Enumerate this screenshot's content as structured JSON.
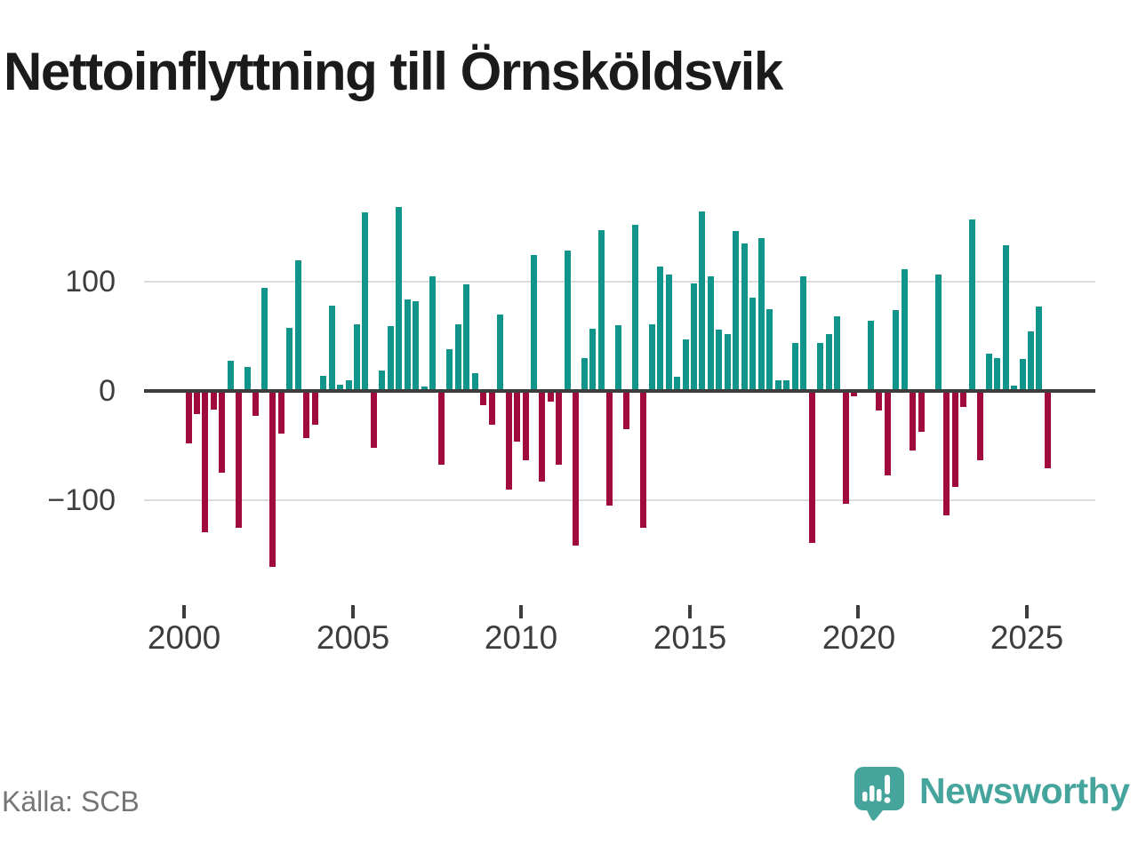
{
  "title": "Nettoinflyttning till Örnsköldsvik",
  "source": "Källa: SCB",
  "logo": {
    "text": "Newsworthy"
  },
  "colors": {
    "positive": "#119489",
    "negative": "#a00a3c",
    "axis": "#3d3d3d",
    "gridline": "#dcdcdc",
    "tick_label": "#3d3d3d",
    "title_text": "#1b1b1b",
    "source_text": "#757575",
    "logo_teal": "#45a59d"
  },
  "y_axis": {
    "labels": [
      "100",
      "0",
      "−100"
    ],
    "values": [
      100,
      0,
      -100
    ]
  },
  "x_axis": {
    "ticks": [
      "2000",
      "2005",
      "2010",
      "2015",
      "2020",
      "2025"
    ]
  },
  "chart_data": {
    "type": "bar",
    "title": "Nettoinflyttning till Örnsköldsvik",
    "xlabel": "",
    "ylabel": "",
    "ylim": [
      -175,
      180
    ],
    "grid": "horizontal",
    "legend": "none",
    "x_tick_labels": [
      "2000",
      "2005",
      "2010",
      "2015",
      "2020",
      "2025"
    ],
    "y_tick_labels": [
      "100",
      "0",
      "−100"
    ],
    "positive_color": "#119489",
    "negative_color": "#a00a3c",
    "source": "Källa: SCB",
    "x": [
      "2000 Q1",
      "2000 Q2",
      "2000 Q3",
      "2000 Q4",
      "2001 Q1",
      "2001 Q2",
      "2001 Q3",
      "2001 Q4",
      "2002 Q1",
      "2002 Q2",
      "2002 Q3",
      "2002 Q4",
      "2003 Q1",
      "2003 Q2",
      "2003 Q3",
      "2003 Q4",
      "2004 Q1",
      "2004 Q2",
      "2004 Q3",
      "2004 Q4",
      "2005 Q1",
      "2005 Q2",
      "2005 Q3",
      "2005 Q4",
      "2006 Q1",
      "2006 Q2",
      "2006 Q3",
      "2006 Q4",
      "2007 Q1",
      "2007 Q2",
      "2007 Q3",
      "2007 Q4",
      "2008 Q1",
      "2008 Q2",
      "2008 Q3",
      "2008 Q4",
      "2009 Q1",
      "2009 Q2",
      "2009 Q3",
      "2009 Q4",
      "2010 Q1",
      "2010 Q2",
      "2010 Q3",
      "2010 Q4",
      "2011 Q1",
      "2011 Q2",
      "2011 Q3",
      "2011 Q4",
      "2012 Q1",
      "2012 Q2",
      "2012 Q3",
      "2012 Q4",
      "2013 Q1",
      "2013 Q2",
      "2013 Q3",
      "2013 Q4",
      "2014 Q1",
      "2014 Q2",
      "2014 Q3",
      "2014 Q4",
      "2015 Q1",
      "2015 Q2",
      "2015 Q3",
      "2015 Q4",
      "2016 Q1",
      "2016 Q2",
      "2016 Q3",
      "2016 Q4",
      "2017 Q1",
      "2017 Q2",
      "2017 Q3",
      "2017 Q4",
      "2018 Q1",
      "2018 Q2",
      "2018 Q3",
      "2018 Q4",
      "2019 Q1",
      "2019 Q2",
      "2019 Q3",
      "2019 Q4",
      "2020 Q1",
      "2020 Q2",
      "2020 Q3",
      "2020 Q4",
      "2021 Q1",
      "2021 Q2",
      "2021 Q3",
      "2021 Q4",
      "2022 Q1",
      "2022 Q2",
      "2022 Q3",
      "2022 Q4",
      "2023 Q1",
      "2023 Q2",
      "2023 Q3",
      "2023 Q4",
      "2024 Q1",
      "2024 Q2",
      "2024 Q3",
      "2024 Q4",
      "2025 Q1",
      "2025 Q2",
      "2025 Q3"
    ],
    "values": [
      -48,
      -21,
      -129,
      -17,
      -75,
      28,
      -125,
      22,
      -23,
      94,
      -161,
      -39,
      58,
      119,
      -43,
      -31,
      14,
      78,
      6,
      10,
      61,
      163,
      -52,
      19,
      59,
      168,
      84,
      82,
      4,
      105,
      -67,
      38,
      61,
      97,
      16,
      -13,
      -31,
      70,
      -90,
      -46,
      -63,
      124,
      -83,
      -10,
      -67,
      128,
      -141,
      30,
      57,
      147,
      -105,
      60,
      -35,
      152,
      -125,
      61,
      114,
      106,
      13,
      47,
      98,
      164,
      105,
      56,
      52,
      146,
      135,
      85,
      140,
      75,
      10,
      10,
      44,
      105,
      -139,
      44,
      52,
      68,
      -103,
      -5,
      0,
      64,
      -18,
      -77,
      74,
      111,
      -54,
      -37,
      0,
      106,
      -114,
      -88,
      -15,
      157,
      -63,
      34,
      30,
      133,
      5,
      29,
      54,
      77,
      -71
    ]
  }
}
